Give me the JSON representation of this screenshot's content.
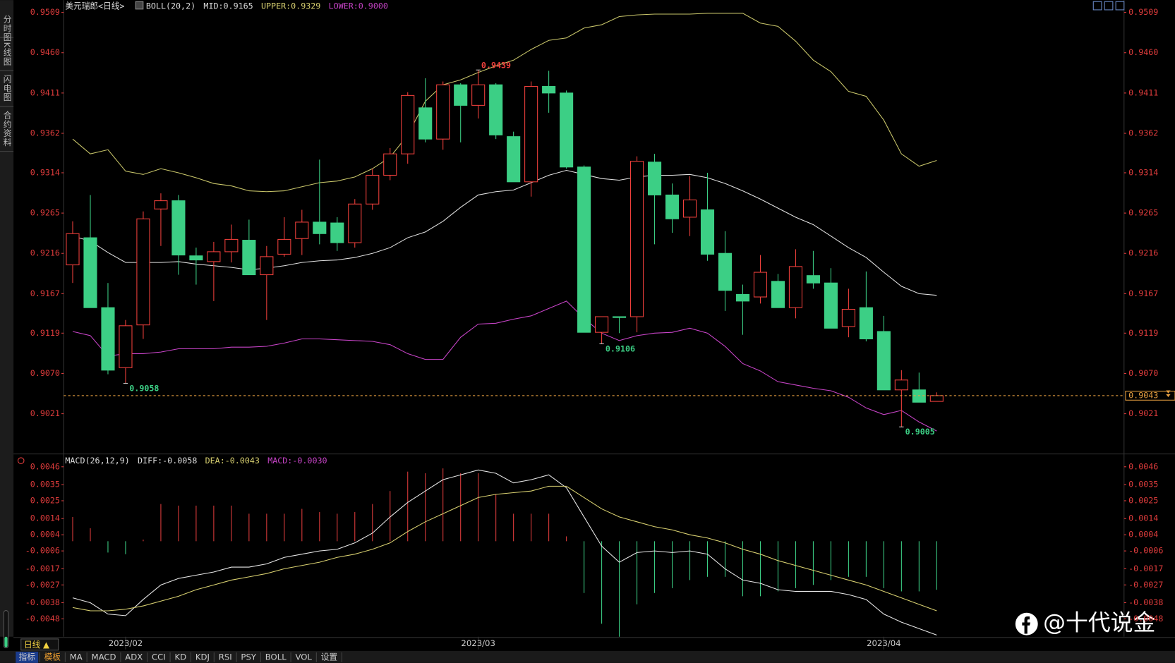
{
  "ui": {
    "sidebar": [
      "分时图",
      "K线图",
      "闪电图",
      "合约资料"
    ],
    "period": "日线 ▲",
    "tabs": [
      "指标",
      "模板",
      "MA",
      "MACD",
      "ADX",
      "CCI",
      "KD",
      "KDJ",
      "RSI",
      "PSY",
      "BOLL",
      "VOL",
      "设置"
    ],
    "watermark": "@十代说金"
  },
  "chart_data": [
    {
      "type": "candlestick",
      "title": "美元瑞郎<日线>",
      "indicator": [
        "BOLL(20,2)",
        "MID:0.9165",
        "UPPER:0.9329",
        "LOWER:0.9000"
      ],
      "categories": [
        null,
        null,
        null,
        "2023/02",
        null,
        null,
        null,
        null,
        null,
        null,
        null,
        null,
        null,
        null,
        null,
        null,
        null,
        null,
        null,
        null,
        null,
        null,
        null,
        "2023/03",
        null,
        null,
        null,
        null,
        null,
        null,
        null,
        null,
        null,
        null,
        null,
        null,
        null,
        null,
        null,
        null,
        null,
        null,
        null,
        null,
        null,
        null,
        "2023/04",
        null,
        null,
        null
      ],
      "open": [
        0.9202,
        0.9235,
        0.915,
        0.9077,
        0.9129,
        0.927,
        0.928,
        0.9213,
        0.9206,
        0.9218,
        0.9232,
        0.919,
        0.9215,
        0.9234,
        0.9254,
        0.9253,
        0.9229,
        0.9276,
        0.9311,
        0.9337,
        0.9393,
        0.9355,
        0.9421,
        0.9396,
        0.9421,
        0.9358,
        0.9303,
        0.9419,
        0.9411,
        0.9321,
        0.912,
        0.9139,
        0.9139,
        0.9327,
        0.9287,
        0.926,
        0.9269,
        0.9216,
        0.9166,
        0.9163,
        0.9182,
        0.915,
        0.9189,
        0.918,
        0.9127,
        0.915,
        0.9121,
        0.905,
        0.905,
        0.9036
      ],
      "high": [
        0.9255,
        0.9287,
        0.918,
        0.9135,
        0.9267,
        0.9289,
        0.9287,
        0.9223,
        0.923,
        0.9251,
        0.9257,
        0.9225,
        0.926,
        0.9269,
        0.933,
        0.926,
        0.9282,
        0.9319,
        0.9344,
        0.9412,
        0.9429,
        0.9425,
        0.9423,
        0.9439,
        0.9423,
        0.9364,
        0.9425,
        0.9438,
        0.9414,
        0.9323,
        0.9139,
        0.9139,
        0.9334,
        0.9337,
        0.9301,
        0.931,
        0.9314,
        0.9243,
        0.9178,
        0.9214,
        0.9191,
        0.9221,
        0.9219,
        0.9198,
        0.9173,
        0.9194,
        0.914,
        0.9074,
        0.9071,
        0.9047
      ],
      "low": [
        0.918,
        0.915,
        0.9069,
        0.9058,
        0.9112,
        0.9225,
        0.919,
        0.9178,
        0.9158,
        0.9205,
        0.919,
        0.9135,
        0.9212,
        0.9214,
        0.9227,
        0.9219,
        0.9223,
        0.9269,
        0.9305,
        0.9325,
        0.9351,
        0.9342,
        0.9351,
        0.938,
        0.9355,
        0.9303,
        0.9285,
        0.9387,
        0.9319,
        0.912,
        0.9106,
        0.9119,
        0.912,
        0.9227,
        0.9241,
        0.9237,
        0.9207,
        0.9146,
        0.9117,
        0.9155,
        0.915,
        0.9137,
        0.9173,
        0.9125,
        0.9114,
        0.9109,
        0.905,
        0.9005,
        0.9035,
        0.9036
      ],
      "close": [
        0.924,
        0.915,
        0.9074,
        0.9128,
        0.9258,
        0.928,
        0.9214,
        0.9208,
        0.9218,
        0.9233,
        0.919,
        0.9212,
        0.9233,
        0.9254,
        0.924,
        0.9229,
        0.9276,
        0.9311,
        0.9337,
        0.9408,
        0.9355,
        0.9421,
        0.9396,
        0.9421,
        0.936,
        0.9303,
        0.9419,
        0.9411,
        0.9321,
        0.912,
        0.9139,
        0.9138,
        0.9328,
        0.9287,
        0.9258,
        0.9281,
        0.9215,
        0.9171,
        0.9158,
        0.9193,
        0.915,
        0.92,
        0.918,
        0.9125,
        0.9148,
        0.9112,
        0.905,
        0.9062,
        0.9035,
        0.9043
      ],
      "up_color": "#f0403c",
      "down_color": "#3ccf85",
      "overlays": [
        {
          "color": "#c9c66a",
          "values": [
            0.9355,
            0.9337,
            0.9342,
            0.9316,
            0.9312,
            0.9319,
            0.9314,
            0.9308,
            0.9301,
            0.9298,
            0.9292,
            0.9291,
            0.9292,
            0.9297,
            0.9302,
            0.9304,
            0.9309,
            0.9319,
            0.9333,
            0.936,
            0.9401,
            0.9421,
            0.9427,
            0.9436,
            0.9444,
            0.9451,
            0.9464,
            0.9475,
            0.9478,
            0.949,
            0.9494,
            0.9504,
            0.9506,
            0.9507,
            0.9507,
            0.9507,
            0.9508,
            0.9508,
            0.9508,
            0.9496,
            0.9492,
            0.9474,
            0.9451,
            0.9437,
            0.9413,
            0.9407,
            0.9378,
            0.9337,
            0.9322,
            0.9329
          ]
        },
        {
          "color": "#e0e0e0",
          "values": [
            0.9237,
            0.9231,
            0.9217,
            0.9205,
            0.9205,
            0.9205,
            0.9206,
            0.9203,
            0.9201,
            0.9199,
            0.9196,
            0.9198,
            0.9201,
            0.9205,
            0.9207,
            0.9208,
            0.9211,
            0.9216,
            0.9223,
            0.9235,
            0.9242,
            0.9255,
            0.9272,
            0.9287,
            0.9291,
            0.9293,
            0.9302,
            0.9311,
            0.9317,
            0.9312,
            0.9307,
            0.9305,
            0.9309,
            0.9311,
            0.9311,
            0.9312,
            0.9308,
            0.9301,
            0.9292,
            0.9282,
            0.9271,
            0.926,
            0.9251,
            0.9237,
            0.9223,
            0.9211,
            0.9193,
            0.9176,
            0.9167,
            0.9165
          ]
        },
        {
          "color": "#c844c8",
          "values": [
            0.9121,
            0.9116,
            0.9091,
            0.9094,
            0.9094,
            0.9096,
            0.91,
            0.91,
            0.91,
            0.9102,
            0.9102,
            0.9103,
            0.9107,
            0.9112,
            0.9112,
            0.9111,
            0.911,
            0.9109,
            0.9105,
            0.9094,
            0.9087,
            0.9087,
            0.9114,
            0.913,
            0.9131,
            0.9136,
            0.914,
            0.9149,
            0.9158,
            0.9137,
            0.9119,
            0.911,
            0.9116,
            0.9119,
            0.912,
            0.9125,
            0.9119,
            0.9103,
            0.9082,
            0.9073,
            0.906,
            0.9056,
            0.9052,
            0.9049,
            0.9041,
            0.9028,
            0.902,
            0.9025,
            0.9011,
            0.9
          ]
        }
      ],
      "annotations": [
        0.9439,
        0.9058,
        0.9106,
        0.9005
      ],
      "last_price": 0.9043,
      "last_price_color": "#e8a040",
      "ylim": [
        0.8973,
        0.9524
      ],
      "yticks": [
        0.9509,
        {
          "value": 0.946,
          "label": "0.9460"
        },
        0.9411,
        0.9362,
        0.9314,
        0.9265,
        0.9216,
        0.9167,
        0.9119,
        {
          "value": 0.907,
          "label": "0.9070"
        },
        0.9021
      ],
      "tick_color": "#e03c3c"
    },
    {
      "type": "combo",
      "indicator": [
        "MACD(26,12,9)",
        "DIFF:-0.0058",
        "DEA:-0.0043",
        "MACD:-0.0030"
      ],
      "series": [
        {
          "type": "bar",
          "up_color": "#e03c3c",
          "down_color": "#3ccf85",
          "values": [
            0.0015,
            0.0008,
            -0.0007,
            -0.0008,
            0.0001,
            0.0023,
            0.0022,
            0.0022,
            0.0022,
            0.0022,
            0.0017,
            0.0017,
            0.0017,
            0.002,
            0.0018,
            0.0017,
            0.0018,
            0.0023,
            0.0031,
            0.0043,
            0.0042,
            0.0045,
            0.0042,
            0.0042,
            0.0029,
            0.0017,
            0.0017,
            0.0017,
            0.0003,
            -0.0032,
            -0.0051,
            -0.0059,
            -0.0039,
            -0.0032,
            -0.0029,
            -0.0024,
            -0.0022,
            -0.0022,
            -0.0034,
            -0.0034,
            -0.0031,
            -0.0029,
            -0.0027,
            -0.0024,
            -0.0022,
            -0.0022,
            -0.0029,
            -0.0031,
            -0.0031,
            -0.003
          ]
        },
        {
          "type": "line",
          "color": "#e8e8e8",
          "values": [
            -0.0035,
            -0.0038,
            -0.0045,
            -0.0046,
            -0.0036,
            -0.0027,
            -0.0023,
            -0.0021,
            -0.0019,
            -0.0016,
            -0.0016,
            -0.0014,
            -0.001,
            -0.0008,
            -0.0006,
            -0.0005,
            -0.0001,
            0.0005,
            0.0015,
            0.0024,
            0.0031,
            0.0038,
            0.0041,
            0.0044,
            0.0042,
            0.0036,
            0.0038,
            0.0041,
            0.0033,
            0.0015,
            -0.0003,
            -0.0013,
            -0.0007,
            -0.0006,
            -0.0007,
            -0.0006,
            -0.0008,
            -0.0017,
            -0.0024,
            -0.0026,
            -0.003,
            -0.0031,
            -0.0031,
            -0.0031,
            -0.0033,
            -0.0036,
            -0.0045,
            -0.005,
            -0.0054,
            -0.0058
          ]
        },
        {
          "type": "line",
          "color": "#d8d070",
          "values": [
            -0.0041,
            -0.0043,
            -0.0043,
            -0.0042,
            -0.004,
            -0.0037,
            -0.0034,
            -0.003,
            -0.0027,
            -0.0024,
            -0.0022,
            -0.002,
            -0.0017,
            -0.0015,
            -0.0013,
            -0.001,
            -0.0008,
            -0.0005,
            -0.0001,
            0.0006,
            0.0012,
            0.0017,
            0.0022,
            0.0027,
            0.0029,
            0.003,
            0.0031,
            0.0034,
            0.0034,
            0.0027,
            0.002,
            0.0015,
            0.0012,
            0.0009,
            0.0007,
            0.0004,
            0.0002,
            -0.0001,
            -0.0005,
            -0.0008,
            -0.0012,
            -0.0015,
            -0.0018,
            -0.0021,
            -0.0024,
            -0.0027,
            -0.0031,
            -0.0035,
            -0.0039,
            -0.0043
          ]
        }
      ],
      "ylim": [
        -0.0059,
        0.0053
      ],
      "yticks": [
        0.0046,
        0.0035,
        0.0025,
        0.0014,
        0.0004,
        -0.0006,
        -0.0017,
        -0.0027,
        -0.0038,
        -0.0048
      ],
      "tick_color": "#e03c3c"
    }
  ]
}
